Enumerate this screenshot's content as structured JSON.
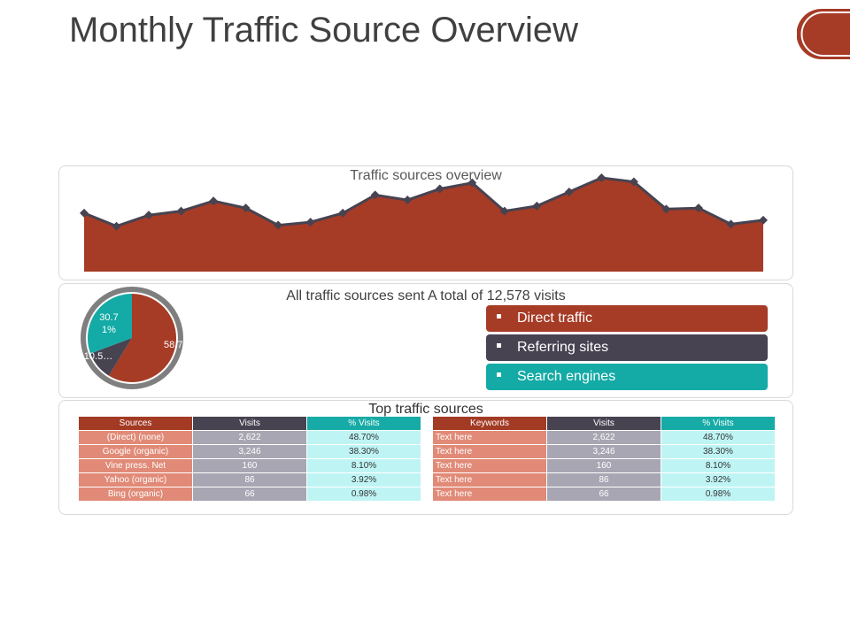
{
  "title": "Monthly Traffic Source Overview",
  "colors": {
    "accent": "#a63b26",
    "dark": "#474351",
    "teal": "#14aaa6"
  },
  "area_panel": {
    "title": "Traffic sources overview"
  },
  "pie_panel": {
    "title": "All traffic sources sent A total of 12,578 visits",
    "legend": [
      {
        "label": "Direct traffic",
        "color": "#a63b26"
      },
      {
        "label": "Referring sites",
        "color": "#474351"
      },
      {
        "label": "Search engines",
        "color": "#14aaa6"
      }
    ]
  },
  "table_panel": {
    "title": "Top traffic sources",
    "left_table": {
      "headers": [
        "Sources",
        "Visits",
        "% Visits"
      ],
      "rows": [
        [
          "(Direct) (none)",
          "2,622",
          "48.70%"
        ],
        [
          "Google (organic)",
          "3,246",
          "38.30%"
        ],
        [
          "Vine press. Net",
          "160",
          "8.10%"
        ],
        [
          "Yahoo (organic)",
          "86",
          "3.92%"
        ],
        [
          "Bing (organic)",
          "66",
          "0.98%"
        ]
      ]
    },
    "right_table": {
      "headers": [
        "Keywords",
        "Visits",
        "% Visits"
      ],
      "rows": [
        [
          "Text here",
          "2,622",
          "48.70%"
        ],
        [
          "Text here",
          "3,246",
          "38.30%"
        ],
        [
          "Text here",
          "160",
          "8.10%"
        ],
        [
          "Text here",
          "86",
          "3.92%"
        ],
        [
          "Text here",
          "66",
          "0.98%"
        ]
      ]
    }
  },
  "chart_data": [
    {
      "type": "area",
      "title": "Traffic sources overview",
      "values": [
        58,
        45,
        56,
        60,
        70,
        63,
        46,
        49,
        58,
        76,
        71,
        82,
        88,
        60,
        65,
        79,
        93,
        89,
        62,
        63,
        47,
        51
      ],
      "ylim": [
        0,
        100
      ],
      "color": "#a63b26",
      "line_color": "#474351"
    },
    {
      "type": "pie",
      "slices": [
        {
          "label": "58.7…",
          "value": 58.7,
          "color": "#a63b26"
        },
        {
          "label": "10.5…",
          "value": 10.5,
          "color": "#474351"
        },
        {
          "label": "30.71%",
          "value": 30.71,
          "color": "#14aaa6"
        }
      ],
      "ring_color": "#7f7f7f"
    }
  ]
}
